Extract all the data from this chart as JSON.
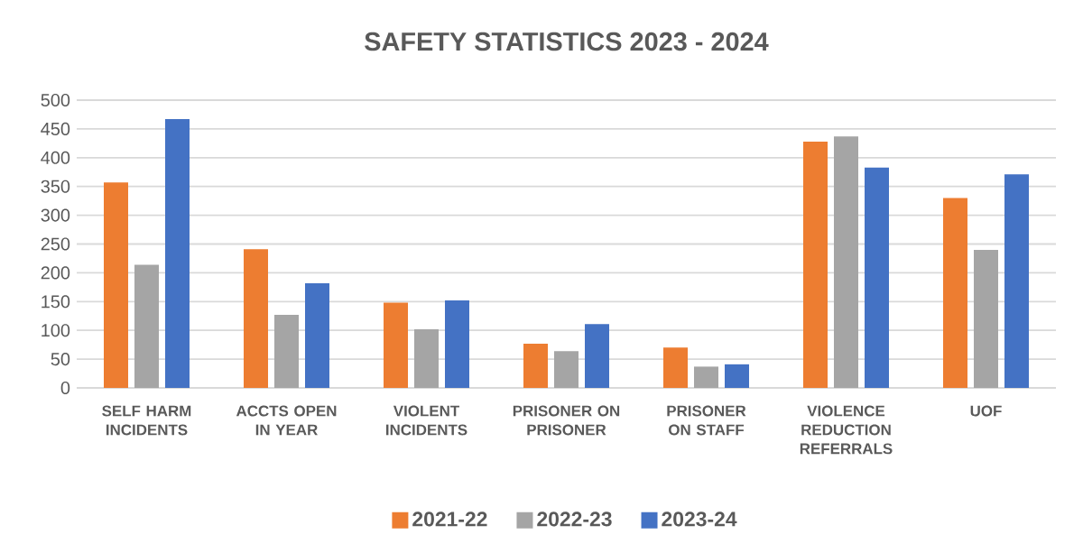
{
  "chart_data": {
    "type": "bar",
    "title": "SAFETY STATISTICS 2023 - 2024",
    "categories": [
      "SELF HARM INCIDENTS",
      "ACCTS OPEN IN YEAR",
      "VIOLENT INCIDENTS",
      "PRISONER ON PRISONER",
      "PRISONER ON STAFF",
      "VIOLENCE REDUCTION REFERRALS",
      "UOF"
    ],
    "series": [
      {
        "name": "2021-22",
        "color": "#ed7d31",
        "values": [
          357,
          241,
          148,
          77,
          70,
          428,
          330
        ]
      },
      {
        "name": "2022-23",
        "color": "#a5a5a5",
        "values": [
          214,
          127,
          102,
          64,
          37,
          437,
          240
        ]
      },
      {
        "name": "2023-24",
        "color": "#4472c4",
        "values": [
          467,
          182,
          152,
          111,
          41,
          383,
          371
        ]
      }
    ],
    "ylim": [
      0,
      500
    ],
    "yticks": [
      0,
      50,
      100,
      150,
      200,
      250,
      300,
      350,
      400,
      450,
      500
    ],
    "grid": "y",
    "legend": "bottom"
  }
}
